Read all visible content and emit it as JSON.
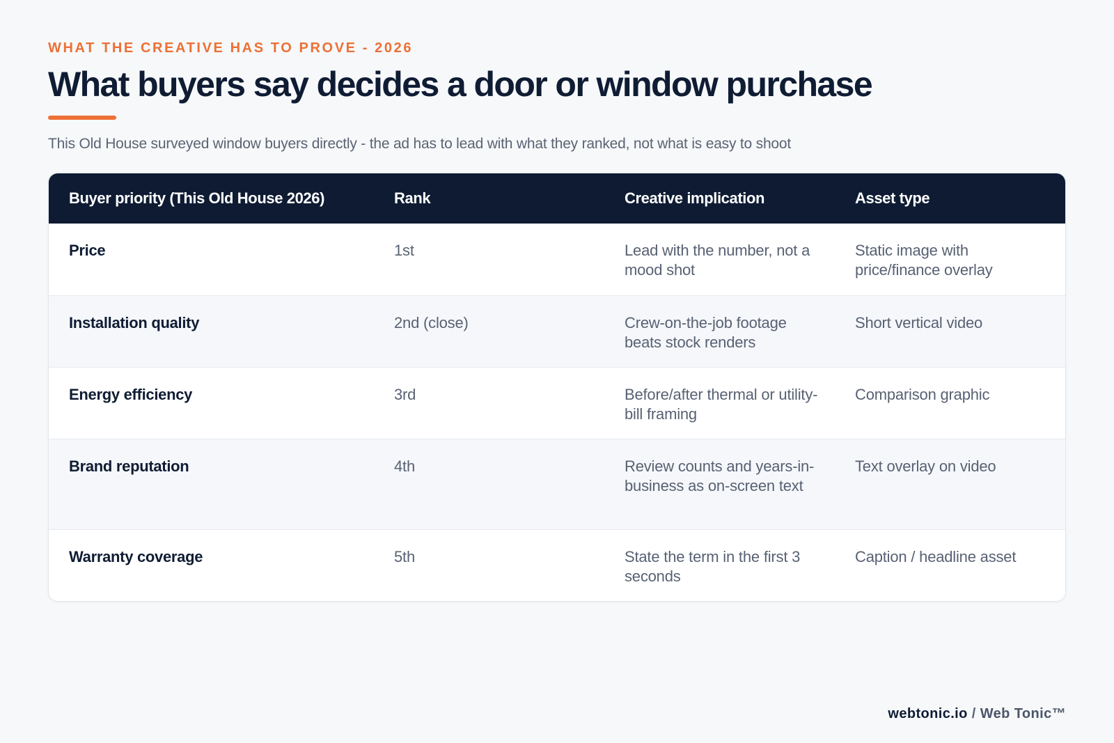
{
  "eyebrow": "WHAT THE CREATIVE HAS TO PROVE - 2026",
  "title": "What buyers say decides a door or window purchase",
  "subtitle": "This Old House surveyed window buyers directly - the ad has to lead with what they ranked, not what is easy to shoot",
  "colors": {
    "accent": "#ed7035",
    "navy": "#0e1b33",
    "background": "#f6f8fa",
    "muted_text": "#586173"
  },
  "table": {
    "headers": [
      "Buyer priority (This Old House 2026)",
      "Rank",
      "Creative implication",
      "Asset type"
    ],
    "rows": [
      {
        "priority": "Price",
        "rank": "1st",
        "implication": "Lead with the number, not a mood shot",
        "asset": "Static image with price/finance overlay"
      },
      {
        "priority": "Installation quality",
        "rank": "2nd (close)",
        "implication": "Crew-on-the-job footage beats stock renders",
        "asset": "Short vertical video"
      },
      {
        "priority": "Energy efficiency",
        "rank": "3rd",
        "implication": "Before/after thermal or utility-bill framing",
        "asset": "Comparison graphic"
      },
      {
        "priority": "Brand reputation",
        "rank": "4th",
        "implication": "Review counts and years-in-business as on-screen text",
        "asset": "Text overlay on video"
      },
      {
        "priority": "Warranty coverage",
        "rank": "5th",
        "implication": "State the term in the first 3 seconds",
        "asset": "Caption / headline asset"
      }
    ]
  },
  "footer": {
    "domain": "webtonic.io",
    "separator": "/",
    "brand": "Web Tonic™"
  }
}
